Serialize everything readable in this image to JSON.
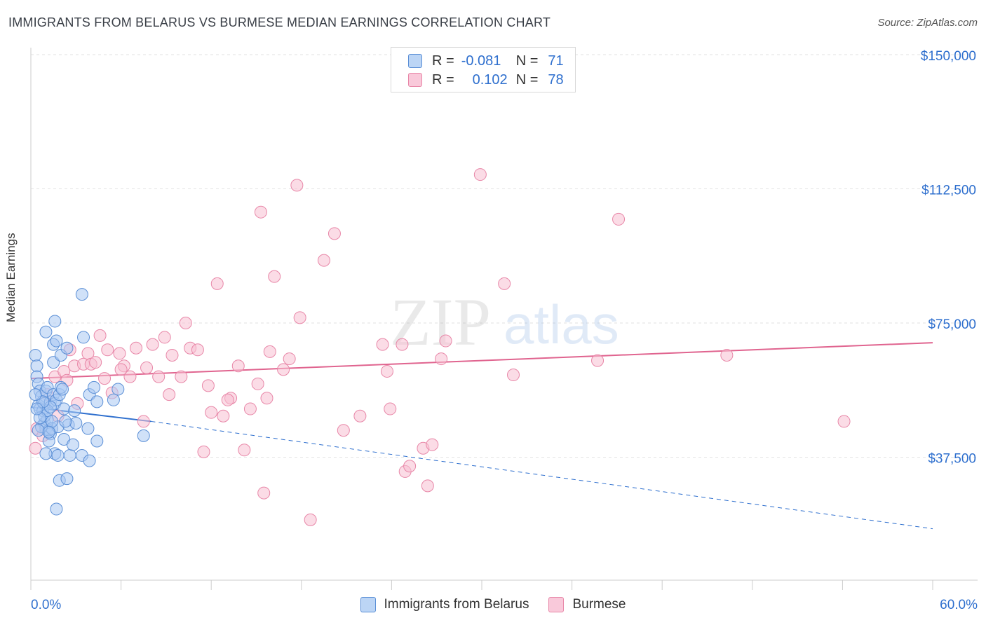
{
  "title": "IMMIGRANTS FROM BELARUS VS BURMESE MEDIAN EARNINGS CORRELATION CHART",
  "source": "Source: ZipAtlas.com",
  "watermark": {
    "zip": "ZIP",
    "atlas": "atlas"
  },
  "legend": {
    "rows": [
      {
        "r_label": "R =",
        "r_value": "-0.081",
        "n_label": "N =",
        "n_value": "71",
        "color": "#a9c8f2",
        "border": "#5b8fd6"
      },
      {
        "r_label": "R =",
        "r_value": "0.102",
        "n_label": "N =",
        "n_value": "78",
        "color": "#f7bfd2",
        "border": "#e887a8"
      }
    ]
  },
  "bottom_legend": [
    {
      "label": "Immigrants from Belarus",
      "color": "#bcd5f5",
      "border": "#5b8fd6"
    },
    {
      "label": "Burmese",
      "color": "#f9c9da",
      "border": "#e887a8"
    }
  ],
  "chart_data": {
    "type": "scatter",
    "xlabel": "",
    "ylabel": "Median Earnings",
    "xlim": [
      0,
      60
    ],
    "ylim": [
      0,
      155000
    ],
    "x_tick_labels": [
      "0.0%",
      "60.0%"
    ],
    "y_ticks": [
      37500,
      75000,
      112500,
      150000
    ],
    "y_tick_labels": [
      "$37,500",
      "$75,000",
      "$112,500",
      "$150,000"
    ],
    "grid": true,
    "legend_position": "top-center",
    "series": [
      {
        "name": "Immigrants from Belarus",
        "color": "#5b8fd6",
        "fill": "#a9c8f2",
        "trend": {
          "x": [
            0,
            8
          ],
          "y": [
            51500,
            47500
          ],
          "dashed_to": [
            60,
            17500
          ],
          "color": "#2e6fce"
        },
        "points": [
          [
            0.3,
            66000
          ],
          [
            0.4,
            63000
          ],
          [
            0.4,
            60000
          ],
          [
            0.5,
            58000
          ],
          [
            0.6,
            56000
          ],
          [
            0.7,
            54500
          ],
          [
            0.5,
            52000
          ],
          [
            0.6,
            51000
          ],
          [
            0.8,
            50500
          ],
          [
            0.9,
            52500
          ],
          [
            0.9,
            47000
          ],
          [
            1.0,
            45500
          ],
          [
            1.1,
            48000
          ],
          [
            1.2,
            45000
          ],
          [
            1.3,
            44000
          ],
          [
            1.4,
            45500
          ],
          [
            1.0,
            56000
          ],
          [
            1.1,
            57000
          ],
          [
            1.3,
            53000
          ],
          [
            1.5,
            55000
          ],
          [
            1.6,
            52500
          ],
          [
            1.7,
            53500
          ],
          [
            1.9,
            55000
          ],
          [
            2.0,
            57000
          ],
          [
            2.1,
            56500
          ],
          [
            2.2,
            51000
          ],
          [
            1.5,
            69000
          ],
          [
            1.7,
            70000
          ],
          [
            1.0,
            72500
          ],
          [
            1.5,
            64000
          ],
          [
            2.0,
            66000
          ],
          [
            1.6,
            75500
          ],
          [
            2.4,
            68000
          ],
          [
            3.4,
            83000
          ],
          [
            3.5,
            71000
          ],
          [
            3.9,
            55000
          ],
          [
            4.2,
            57000
          ],
          [
            4.4,
            53000
          ],
          [
            5.8,
            56500
          ],
          [
            1.2,
            42000
          ],
          [
            1.6,
            38500
          ],
          [
            1.8,
            38000
          ],
          [
            2.2,
            42500
          ],
          [
            2.6,
            38000
          ],
          [
            2.8,
            41000
          ],
          [
            3.4,
            38000
          ],
          [
            3.9,
            36500
          ],
          [
            2.5,
            46500
          ],
          [
            3.0,
            47000
          ],
          [
            3.8,
            45500
          ],
          [
            4.4,
            42000
          ],
          [
            1.0,
            38500
          ],
          [
            1.9,
            31000
          ],
          [
            2.4,
            31500
          ],
          [
            1.7,
            23000
          ],
          [
            5.5,
            53500
          ],
          [
            7.5,
            43500
          ],
          [
            0.7,
            46000
          ],
          [
            0.9,
            49000
          ],
          [
            1.1,
            50500
          ],
          [
            1.3,
            51500
          ],
          [
            1.8,
            46000
          ],
          [
            0.5,
            45000
          ],
          [
            0.8,
            53000
          ],
          [
            1.4,
            47500
          ],
          [
            0.6,
            48500
          ],
          [
            2.9,
            50500
          ],
          [
            0.4,
            51000
          ],
          [
            0.3,
            55000
          ],
          [
            1.2,
            44500
          ],
          [
            2.3,
            47500
          ]
        ]
      },
      {
        "name": "Burmese",
        "color": "#e887a8",
        "fill": "#f7bfd2",
        "trend": {
          "x": [
            0,
            60
          ],
          "y": [
            59500,
            69500
          ],
          "color": "#e0648f"
        },
        "points": [
          [
            0.3,
            40000
          ],
          [
            0.4,
            45500
          ],
          [
            1.1,
            55000
          ],
          [
            1.6,
            60000
          ],
          [
            2.2,
            61500
          ],
          [
            2.6,
            67500
          ],
          [
            2.9,
            63000
          ],
          [
            3.1,
            52500
          ],
          [
            3.5,
            63500
          ],
          [
            3.8,
            66500
          ],
          [
            4.0,
            63500
          ],
          [
            4.3,
            64000
          ],
          [
            4.6,
            71500
          ],
          [
            4.9,
            59500
          ],
          [
            5.1,
            67500
          ],
          [
            5.4,
            55500
          ],
          [
            5.9,
            66500
          ],
          [
            6.2,
            63000
          ],
          [
            6.6,
            60000
          ],
          [
            7.0,
            68000
          ],
          [
            7.5,
            47500
          ],
          [
            7.7,
            62500
          ],
          [
            8.1,
            69000
          ],
          [
            8.5,
            60000
          ],
          [
            8.9,
            71000
          ],
          [
            9.2,
            55000
          ],
          [
            9.4,
            66000
          ],
          [
            10.0,
            60000
          ],
          [
            10.3,
            75000
          ],
          [
            10.6,
            68000
          ],
          [
            11.1,
            67500
          ],
          [
            11.5,
            39000
          ],
          [
            11.8,
            57500
          ],
          [
            12.4,
            86000
          ],
          [
            12.8,
            49000
          ],
          [
            13.3,
            54000
          ],
          [
            13.8,
            63000
          ],
          [
            14.2,
            39500
          ],
          [
            14.6,
            51000
          ],
          [
            15.1,
            58000
          ],
          [
            15.3,
            106000
          ],
          [
            15.5,
            27500
          ],
          [
            15.9,
            67000
          ],
          [
            16.2,
            88000
          ],
          [
            16.8,
            62000
          ],
          [
            17.2,
            65000
          ],
          [
            17.7,
            113500
          ],
          [
            17.9,
            76500
          ],
          [
            18.6,
            20000
          ],
          [
            19.5,
            92500
          ],
          [
            20.2,
            100000
          ],
          [
            20.8,
            45000
          ],
          [
            21.9,
            49000
          ],
          [
            23.4,
            69000
          ],
          [
            23.7,
            61500
          ],
          [
            23.9,
            51000
          ],
          [
            24.7,
            69000
          ],
          [
            24.9,
            33500
          ],
          [
            25.2,
            35000
          ],
          [
            26.1,
            40000
          ],
          [
            26.7,
            41000
          ],
          [
            26.4,
            29500
          ],
          [
            27.3,
            65000
          ],
          [
            27.6,
            70000
          ],
          [
            29.9,
            116500
          ],
          [
            31.5,
            86000
          ],
          [
            32.1,
            60500
          ],
          [
            37.7,
            64500
          ],
          [
            39.1,
            104000
          ],
          [
            46.3,
            66000
          ],
          [
            54.1,
            47500
          ],
          [
            1.8,
            49000
          ],
          [
            2.4,
            59000
          ],
          [
            0.8,
            43500
          ],
          [
            6.0,
            62000
          ],
          [
            12.0,
            50000
          ],
          [
            15.7,
            54000
          ],
          [
            13.1,
            53500
          ]
        ]
      }
    ]
  }
}
